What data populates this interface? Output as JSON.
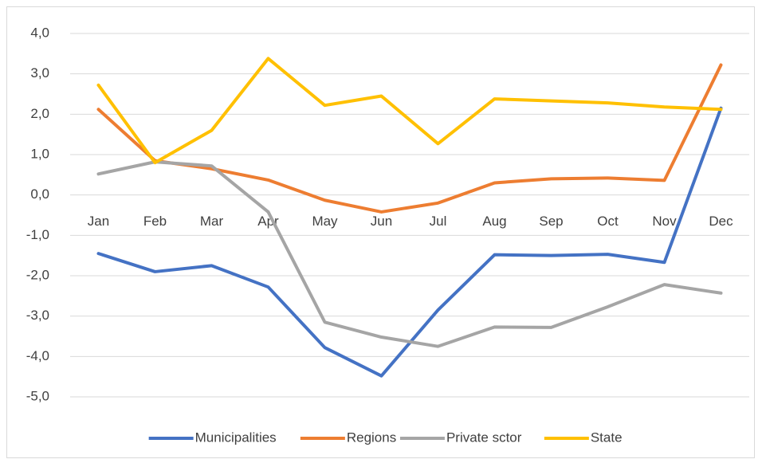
{
  "chart_data": {
    "type": "line",
    "categories": [
      "Jan",
      "Feb",
      "Mar",
      "Apr",
      "May",
      "Jun",
      "Jul",
      "Aug",
      "Sep",
      "Oct",
      "Nov",
      "Dec"
    ],
    "series": [
      {
        "name": "Municipalities",
        "color": "#4472c4",
        "values": [
          -1.45,
          -1.9,
          -1.75,
          -2.28,
          -3.78,
          -4.48,
          -2.85,
          -1.48,
          -1.5,
          -1.47,
          -1.67,
          2.15
        ]
      },
      {
        "name": "Regions",
        "color": "#ed7d31",
        "values": [
          2.12,
          0.85,
          0.65,
          0.37,
          -0.13,
          -0.42,
          -0.2,
          0.3,
          0.4,
          0.42,
          0.36,
          3.22
        ]
      },
      {
        "name": "Private sctor",
        "color": "#a5a5a5",
        "values": [
          0.52,
          0.82,
          0.72,
          -0.42,
          -3.15,
          -3.52,
          -3.75,
          -3.27,
          -3.28,
          -2.77,
          -2.22,
          -2.43
        ]
      },
      {
        "name": "State",
        "color": "#ffc000",
        "values": [
          2.72,
          0.8,
          1.6,
          3.38,
          2.22,
          2.45,
          1.27,
          2.38,
          2.33,
          2.28,
          2.18,
          2.12
        ]
      }
    ],
    "ylim": [
      -5,
      4
    ],
    "yticks": [
      {
        "value": 4,
        "label": "4,0"
      },
      {
        "value": 3,
        "label": "3,0"
      },
      {
        "value": 2,
        "label": "2,0"
      },
      {
        "value": 1,
        "label": "1,0"
      },
      {
        "value": 0,
        "label": "0,0"
      },
      {
        "value": -1,
        "label": "-1,0"
      },
      {
        "value": -2,
        "label": "-2,0"
      },
      {
        "value": -3,
        "label": "-3,0"
      },
      {
        "value": -4,
        "label": "-4,0"
      },
      {
        "value": -5,
        "label": "-5,0"
      }
    ],
    "grid": true,
    "legend": "bottom"
  }
}
